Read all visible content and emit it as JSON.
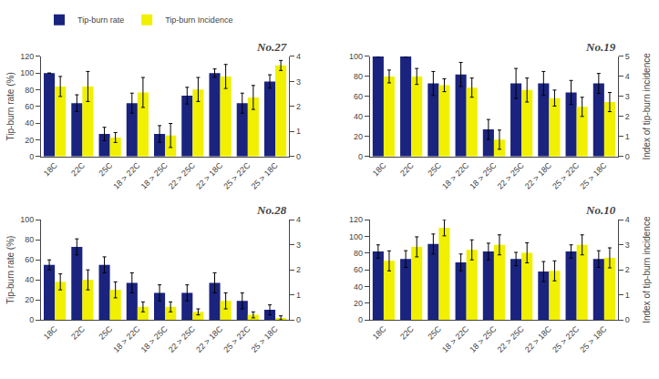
{
  "chart_data": [
    {
      "type": "bar",
      "title": "No.27",
      "categories": [
        "18C",
        "22C",
        "25C",
        "18 > 22C",
        "18 > 25C",
        "22 > 25C",
        "22 > 18C",
        "25 > 22C",
        "25 > 18C"
      ],
      "series": [
        {
          "name": "Tip-burn rate",
          "color": "#1a237e",
          "values": [
            100,
            64,
            27,
            64,
            27,
            73,
            100,
            64,
            90
          ],
          "errors": [
            0,
            10,
            8,
            12,
            10,
            10,
            5,
            12,
            8
          ]
        },
        {
          "name": "Tip-burn Incidence",
          "color": "#f0f000",
          "axis": "y2",
          "values": [
            2.8,
            2.8,
            0.76,
            2.56,
            0.84,
            2.68,
            3.2,
            2.36,
            3.64
          ],
          "errors": [
            0.4,
            0.6,
            0.2,
            0.6,
            0.48,
            0.48,
            0.48,
            0.48,
            0.2
          ]
        }
      ],
      "ylabel": "Tip-burn rate (%)",
      "ylim": [
        0,
        120
      ],
      "yticks": [
        0,
        20,
        40,
        60,
        80,
        100,
        120
      ],
      "y2lim": [
        0,
        4
      ],
      "y2ticks": [
        0,
        1,
        2,
        3,
        4
      ],
      "grid": false,
      "legend": "upper left"
    },
    {
      "type": "bar",
      "title": "No.19",
      "categories": [
        "18C",
        "22C",
        "25C",
        "18 > 22C",
        "18 > 25C",
        "22 > 25C",
        "22 > 18C",
        "25 > 22C",
        "25 > 18C"
      ],
      "series": [
        {
          "color": "#1a237e",
          "values": [
            100,
            100,
            73,
            82,
            27,
            73,
            73,
            64,
            73
          ],
          "errors": [
            0,
            0,
            12,
            12,
            10,
            15,
            12,
            12,
            10
          ]
        },
        {
          "color": "#f0f000",
          "axis": "y2",
          "values": [
            4,
            4,
            3.56,
            3.44,
            0.84,
            3.32,
            2.92,
            2.48,
            2.72
          ],
          "errors": [
            0.32,
            0.4,
            0.32,
            0.48,
            0.48,
            0.6,
            0.4,
            0.48,
            0.48
          ]
        }
      ],
      "y2label": "Index of tip-burn incidence",
      "ylim": [
        0,
        100
      ],
      "yticks": [
        0,
        20,
        40,
        60,
        80,
        100
      ],
      "y2lim": [
        0,
        5
      ],
      "y2ticks": [
        0,
        1,
        2,
        3,
        4,
        5
      ],
      "grid": false
    },
    {
      "type": "bar",
      "title": "No.28",
      "categories": [
        "18C",
        "22C",
        "25C",
        "18 > 22C",
        "18 > 25C",
        "22 > 25C",
        "22 > 18C",
        "25 > 22C",
        "25 > 18C"
      ],
      "series": [
        {
          "color": "#1a237e",
          "values": [
            55,
            73,
            55,
            37,
            27,
            27,
            37,
            19,
            10
          ],
          "errors": [
            5,
            8,
            8,
            10,
            8,
            8,
            10,
            8,
            5
          ]
        },
        {
          "color": "#f0f000",
          "axis": "y2",
          "values": [
            1.52,
            1.6,
            1.2,
            0.52,
            0.52,
            0.32,
            0.76,
            0.2,
            0.08
          ],
          "errors": [
            0.32,
            0.4,
            0.32,
            0.2,
            0.2,
            0.12,
            0.32,
            0.12,
            0.08
          ]
        }
      ],
      "ylabel": "Tip-burn rate (%)",
      "ylim": [
        0,
        100
      ],
      "yticks": [
        0,
        20,
        40,
        60,
        80,
        100
      ],
      "y2lim": [
        0,
        4
      ],
      "y2ticks": [
        0,
        1,
        2,
        3,
        4
      ],
      "grid": false
    },
    {
      "type": "bar",
      "title": "No.10",
      "categories": [
        "18C",
        "22C",
        "25C",
        "18 > 22C",
        "18 > 25C",
        "22 > 25C",
        "22 > 18C",
        "25 > 22C",
        "25 > 18C"
      ],
      "series": [
        {
          "color": "#1a237e",
          "values": [
            82,
            73,
            91,
            69,
            82,
            73,
            58,
            82,
            73
          ],
          "errors": [
            8,
            10,
            12,
            10,
            10,
            8,
            12,
            8,
            10
          ]
        },
        {
          "color": "#f0f000",
          "axis": "y2",
          "values": [
            2.36,
            2.92,
            3.68,
            2.8,
            3,
            2.68,
            1.96,
            3,
            2.48
          ],
          "errors": [
            0.4,
            0.4,
            0.32,
            0.4,
            0.4,
            0.4,
            0.4,
            0.4,
            0.4
          ]
        }
      ],
      "y2label": "Index of tip-burn incidence",
      "ylim": [
        0,
        120
      ],
      "yticks": [
        0,
        20,
        40,
        60,
        80,
        100,
        120
      ],
      "y2lim": [
        0,
        4
      ],
      "y2ticks": [
        0,
        1,
        2,
        3,
        4
      ],
      "grid": false
    }
  ]
}
